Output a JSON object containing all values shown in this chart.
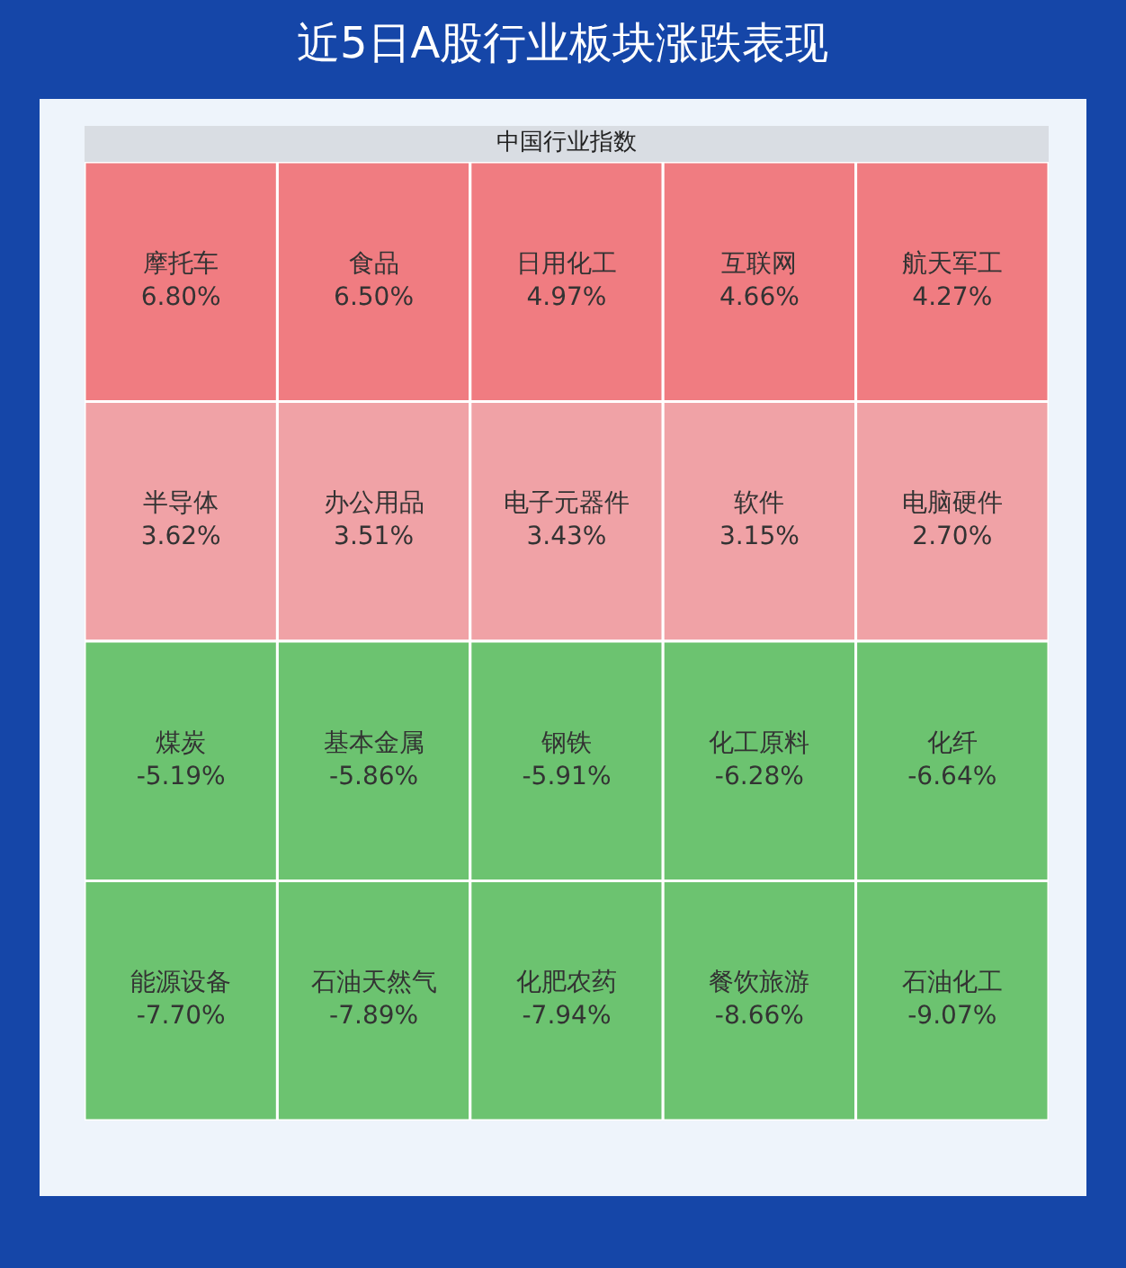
{
  "chart_data": {
    "type": "other",
    "title": "近5日A股行业板块涨跌表现",
    "subtitle": "中国行业指数",
    "categories": [
      "摩托车",
      "食品",
      "日用化工",
      "互联网",
      "航天军工",
      "半导体",
      "办公用品",
      "电子元器件",
      "软件",
      "电脑硬件",
      "煤炭",
      "基本金属",
      "钢铁",
      "化工原料",
      "化纤",
      "能源设备",
      "石油天然气",
      "化肥农药",
      "餐饮旅游",
      "石油化工"
    ],
    "values": [
      6.8,
      6.5,
      4.97,
      4.66,
      4.27,
      3.62,
      3.51,
      3.43,
      3.15,
      2.7,
      -5.19,
      -5.86,
      -5.91,
      -6.28,
      -6.64,
      -7.7,
      -7.89,
      -7.94,
      -8.66,
      -9.07
    ],
    "value_labels": [
      "6.80%",
      "6.50%",
      "4.97%",
      "4.66%",
      "4.27%",
      "3.62%",
      "3.51%",
      "3.43%",
      "3.15%",
      "2.70%",
      "-5.19%",
      "-5.86%",
      "-5.91%",
      "-6.28%",
      "-6.64%",
      "-7.70%",
      "-7.89%",
      "-7.94%",
      "-8.66%",
      "-9.07%"
    ],
    "colors": [
      "#f07c81",
      "#f07c81",
      "#f07c81",
      "#f07c81",
      "#f07c81",
      "#f0a2a6",
      "#f0a2a6",
      "#f0a2a6",
      "#f0a2a6",
      "#f0a2a6",
      "#6cc370",
      "#6cc370",
      "#6cc370",
      "#6cc370",
      "#6cc370",
      "#6cc370",
      "#6cc370",
      "#6cc370",
      "#6cc370",
      "#6cc370"
    ]
  }
}
